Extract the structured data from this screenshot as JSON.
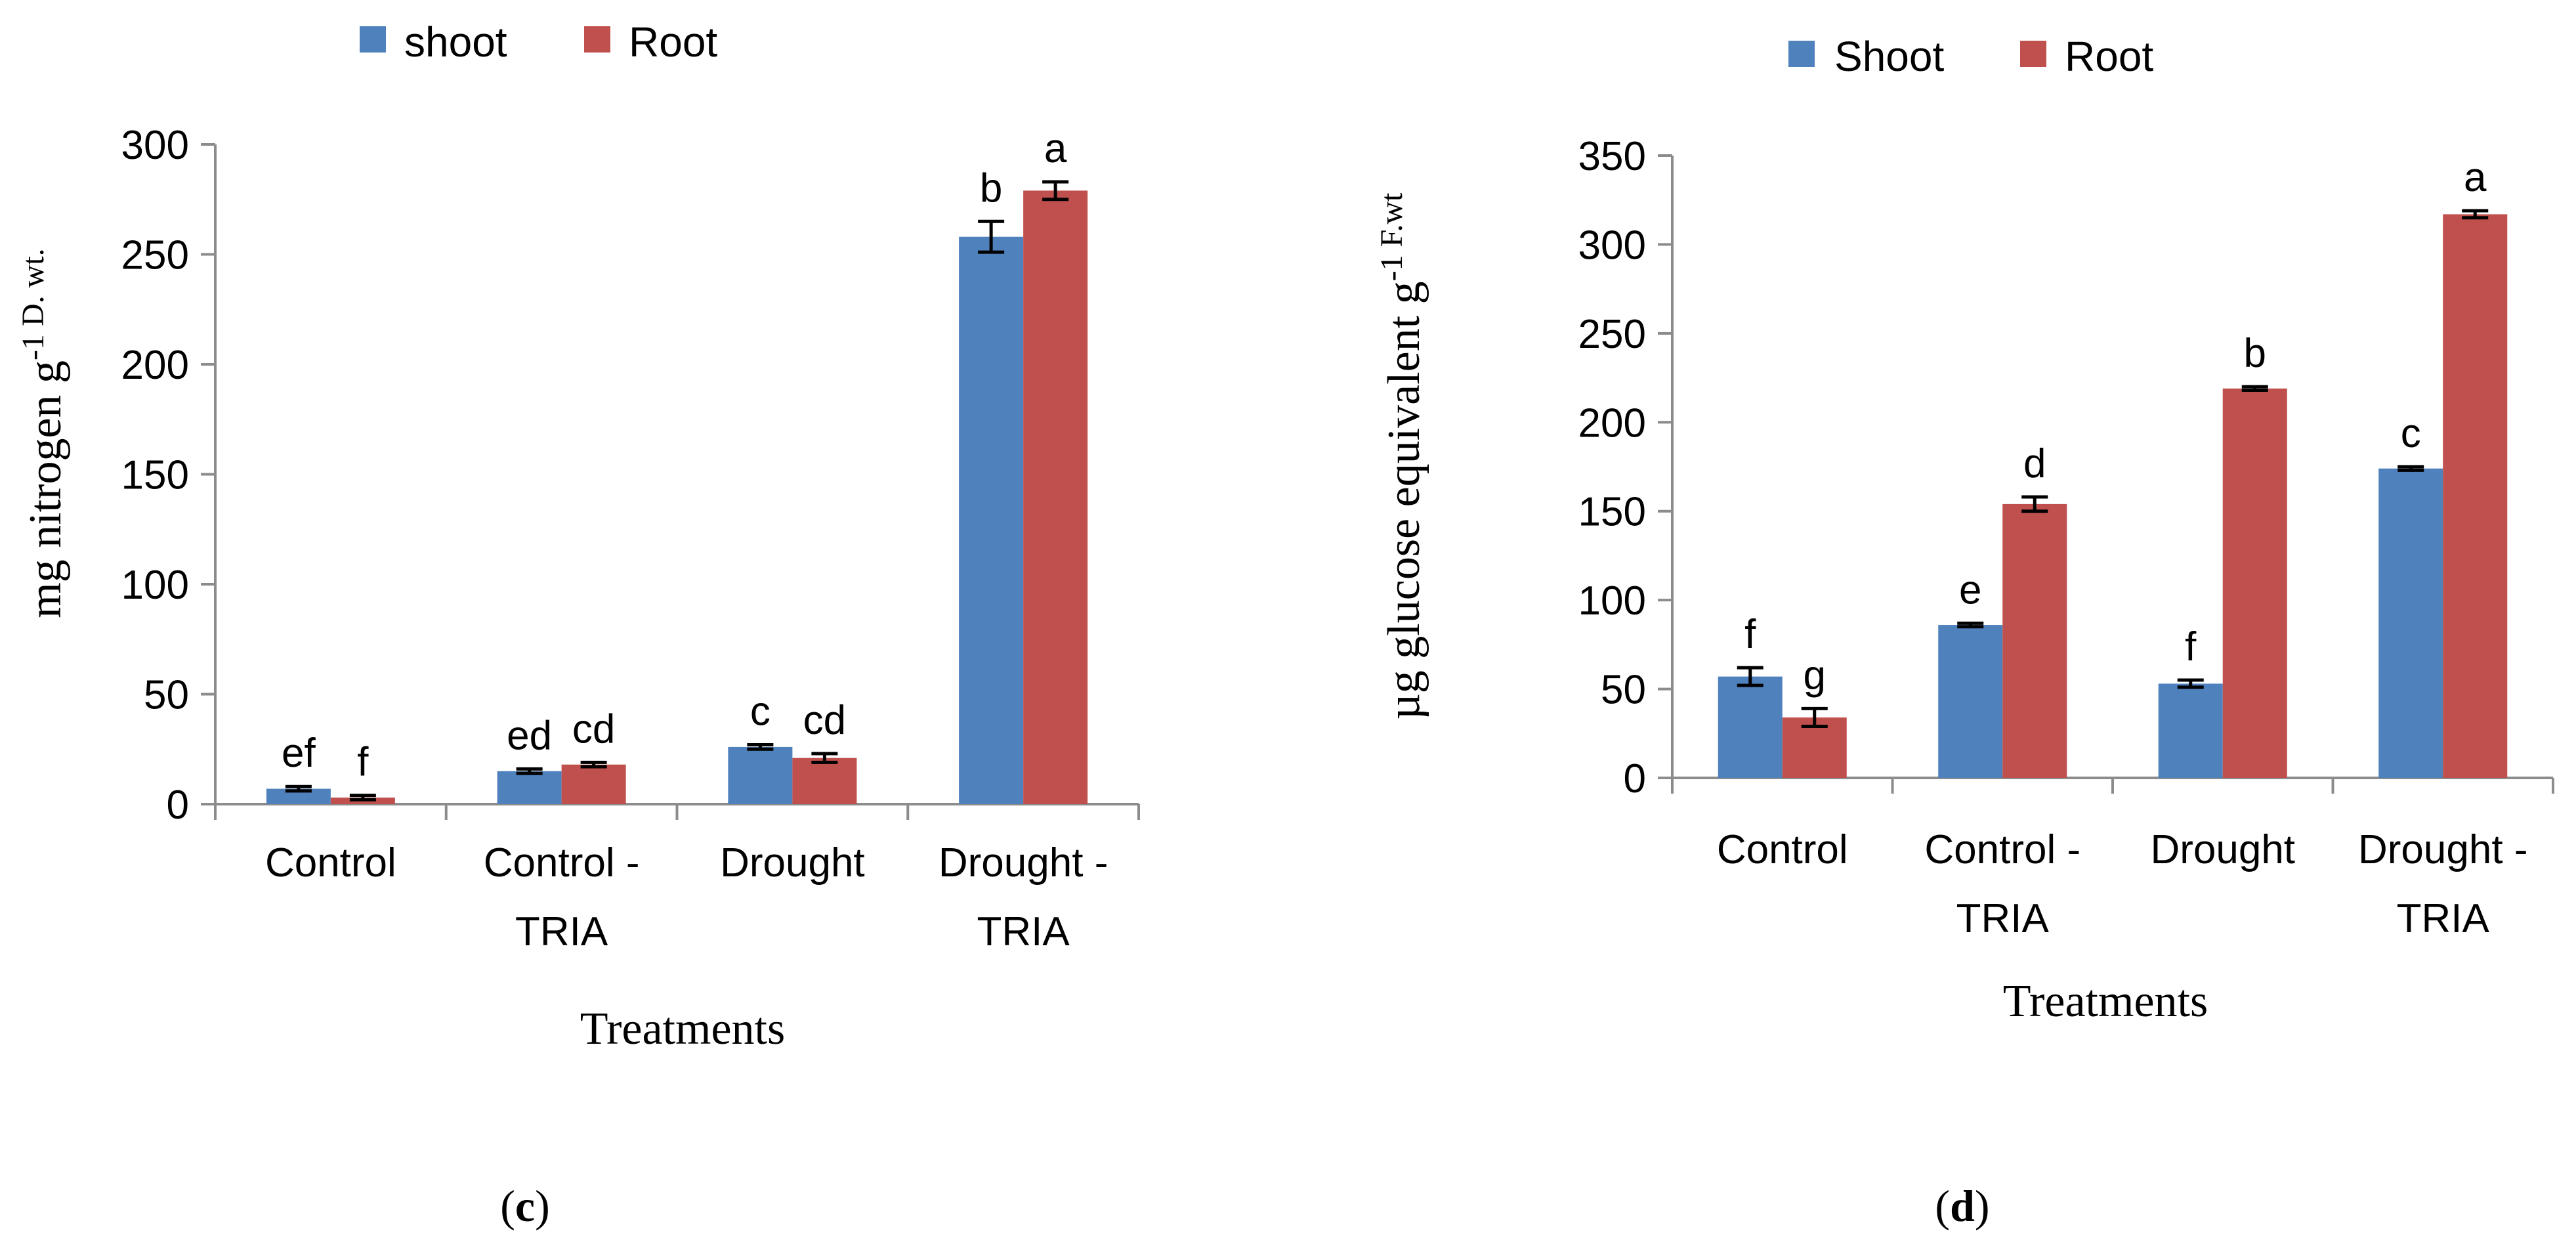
{
  "chart_data": [
    {
      "type": "bar",
      "panel": "c",
      "caption_open": "(",
      "caption_letter": "c",
      "caption_close": ")",
      "legend": [
        "shoot",
        "Root"
      ],
      "colors": [
        "#4F81BD",
        "#C0504D"
      ],
      "categories": [
        [
          "Control"
        ],
        [
          "Control -",
          "TRIA"
        ],
        [
          "Drought"
        ],
        [
          "Drought -",
          "TRIA"
        ]
      ],
      "series": [
        {
          "name": "shoot",
          "values": [
            7,
            15,
            26,
            258
          ],
          "errors": [
            1,
            1,
            1,
            7
          ],
          "letters": [
            "ef",
            "ed",
            "c",
            "b"
          ]
        },
        {
          "name": "Root",
          "values": [
            3,
            18,
            21,
            279
          ],
          "errors": [
            1,
            1,
            2,
            4
          ],
          "letters": [
            "f",
            "cd",
            "cd",
            "a"
          ]
        }
      ],
      "ylim": [
        0,
        300
      ],
      "yticks": [
        0,
        50,
        100,
        150,
        200,
        250,
        300
      ],
      "xlabel": "Treatments",
      "ylabel_main": "mg nitrogen g",
      "ylabel_sup": "-1 D. wt."
    },
    {
      "type": "bar",
      "panel": "d",
      "caption_open": "(",
      "caption_letter": "d",
      "caption_close": ")",
      "legend": [
        "Shoot",
        "Root"
      ],
      "colors": [
        "#4F81BD",
        "#C0504D"
      ],
      "categories": [
        [
          "Control"
        ],
        [
          "Control -",
          "TRIA"
        ],
        [
          "Drought"
        ],
        [
          "Drought -",
          "TRIA"
        ]
      ],
      "series": [
        {
          "name": "Shoot",
          "values": [
            57,
            86,
            53,
            174
          ],
          "errors": [
            5,
            1,
            2,
            1
          ],
          "letters": [
            "f",
            "e",
            "f",
            "c"
          ]
        },
        {
          "name": "Root",
          "values": [
            34,
            154,
            219,
            317
          ],
          "errors": [
            5,
            4,
            1,
            2
          ],
          "letters": [
            "g",
            "d",
            "b",
            "a"
          ]
        }
      ],
      "ylim": [
        0,
        350
      ],
      "yticks": [
        0,
        50,
        100,
        150,
        200,
        250,
        300,
        350
      ],
      "xlabel": "Treatments",
      "ylabel_main": "µg glucose equivalent g",
      "ylabel_sup": "-1 F.wt"
    }
  ]
}
